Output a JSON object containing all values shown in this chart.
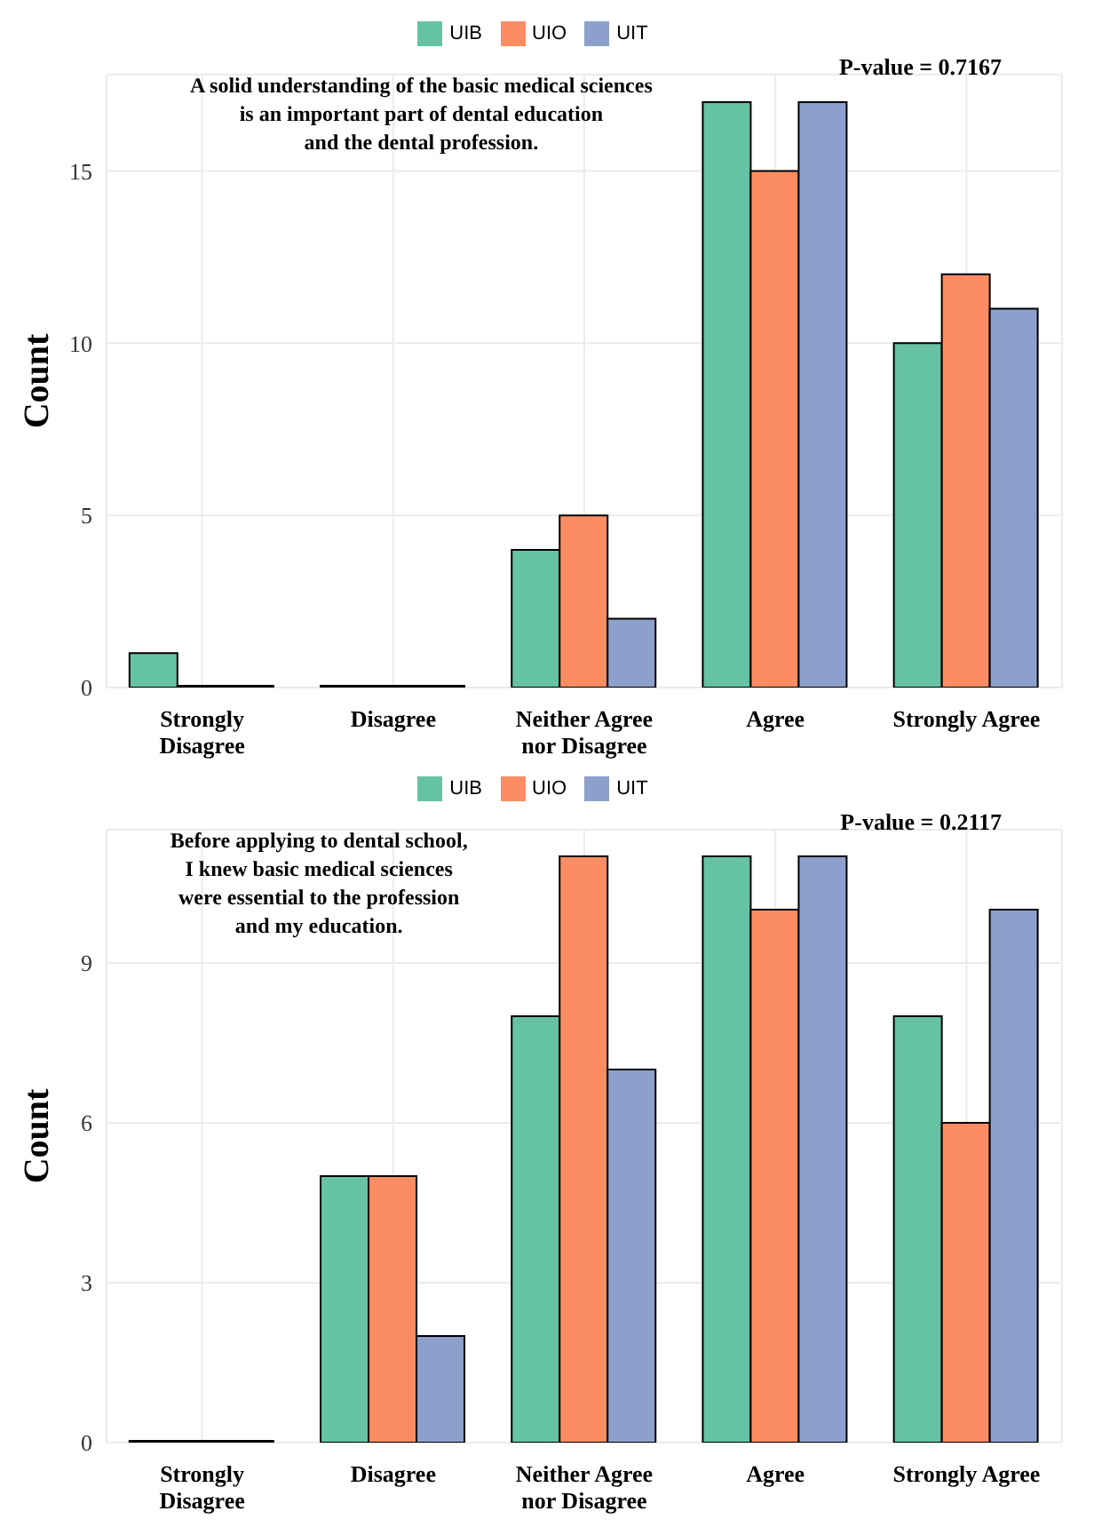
{
  "chart_data": [
    {
      "type": "bar",
      "categories": [
        "Strongly Disagree",
        "Disagree",
        "Neither Agree nor Disagree",
        "Agree",
        "Strongly Agree"
      ],
      "series": [
        {
          "name": "UIB",
          "color": "#66c2a5",
          "values": [
            1,
            0,
            4,
            17,
            10
          ]
        },
        {
          "name": "UIO",
          "color": "#fc8d62",
          "values": [
            0,
            0,
            5,
            15,
            12
          ]
        },
        {
          "name": "UIT",
          "color": "#8da0cb",
          "values": [
            0,
            0,
            2,
            17,
            11
          ]
        }
      ],
      "ylabel": "Count",
      "ylim": [
        0,
        17.8
      ],
      "yticks": [
        0,
        5,
        10,
        15
      ],
      "grid": true,
      "legend": "top",
      "annotations": [
        "A solid understanding of the basic medical sciences\nis an important part of dental education\nand the dental profession.",
        "P-value = 0.7167"
      ]
    },
    {
      "type": "bar",
      "categories": [
        "Strongly Disagree",
        "Disagree",
        "Neither Agree nor Disagree",
        "Agree",
        "Strongly Agree"
      ],
      "series": [
        {
          "name": "UIB",
          "color": "#66c2a5",
          "values": [
            0,
            5,
            8,
            11,
            8
          ]
        },
        {
          "name": "UIO",
          "color": "#fc8d62",
          "values": [
            0,
            5,
            11,
            10,
            6
          ]
        },
        {
          "name": "UIT",
          "color": "#8da0cb",
          "values": [
            0,
            2,
            7,
            11,
            10
          ]
        }
      ],
      "ylabel": "Count",
      "ylim": [
        0,
        11.5
      ],
      "yticks": [
        0,
        3,
        6,
        9
      ],
      "grid": true,
      "legend": "top",
      "annotations": [
        "Before applying to dental school,\nI knew basic medical sciences\nwere essential to the profession\nand my education.",
        "P-value = 0.2117"
      ]
    }
  ]
}
